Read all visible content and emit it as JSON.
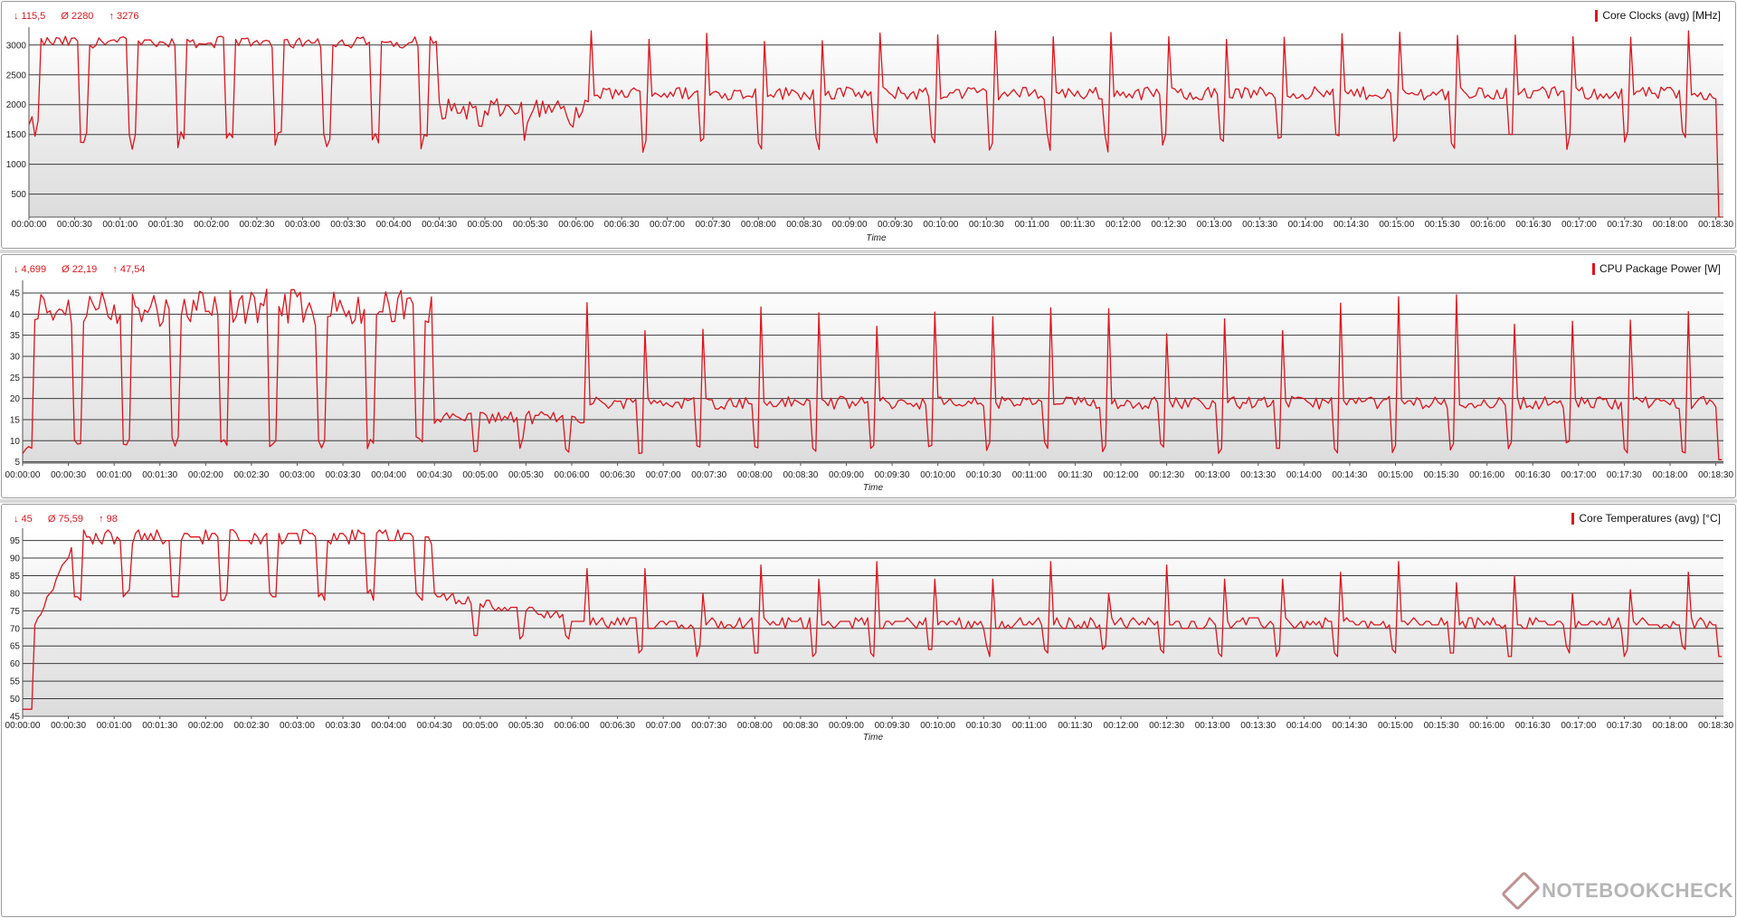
{
  "panels": [
    {
      "stats": {
        "min": "↓ 115,5",
        "avg": "Ø 2280",
        "max": "↑ 3276"
      },
      "legend": "Core Clocks (avg) [MHz]"
    },
    {
      "stats": {
        "min": "↓ 4,699",
        "avg": "Ø 22,19",
        "max": "↑ 47,54"
      },
      "legend": "CPU Package Power [W]"
    },
    {
      "stats": {
        "min": "↓ 45",
        "avg": "Ø 75,59",
        "max": "↑ 98"
      },
      "legend": "Core Temperatures (avg) [°C]"
    }
  ],
  "watermark": "NOTEBOOKCHECK",
  "colors": {
    "series": "#e0141c",
    "grid": "#3c3c3c",
    "bg_top": "#ffffff",
    "bg_bottom": "#dcdcdc"
  },
  "chart_data": [
    {
      "type": "line",
      "title": "",
      "xlabel": "Time",
      "ylabel": "",
      "xlim": [
        0,
        1115
      ],
      "ylim": [
        115.5,
        3300
      ],
      "yticks": [
        500,
        1000,
        1500,
        2000,
        2500,
        3000
      ],
      "xtick_labels": [
        "00:00:00",
        "00:00:30",
        "00:01:00",
        "00:01:30",
        "00:02:00",
        "00:02:30",
        "00:03:00",
        "00:03:30",
        "00:04:00",
        "00:04:30",
        "00:05:00",
        "00:05:30",
        "00:06:00",
        "00:06:30",
        "00:07:00",
        "00:07:30",
        "00:08:00",
        "00:08:30",
        "00:09:00",
        "00:09:30",
        "00:10:00",
        "00:10:30",
        "00:11:00",
        "00:11:30",
        "00:12:00",
        "00:12:30",
        "00:13:00",
        "00:13:30",
        "00:14:00",
        "00:14:30",
        "00:15:00",
        "00:15:30",
        "00:16:00",
        "00:16:30",
        "00:17:00",
        "00:17:30",
        "00:18:00",
        "00:18:30"
      ],
      "grid": true,
      "series": [
        {
          "name": "Core Clocks (avg) [MHz]",
          "values": []
        }
      ]
    },
    {
      "type": "line",
      "title": "",
      "xlabel": "Time",
      "ylabel": "",
      "xlim": [
        0,
        1115
      ],
      "ylim": [
        4.699,
        48
      ],
      "yticks": [
        5,
        10,
        15,
        20,
        25,
        30,
        35,
        40,
        45
      ],
      "xtick_labels": [
        "00:00:00",
        "00:00:30",
        "00:01:00",
        "00:01:30",
        "00:02:00",
        "00:02:30",
        "00:03:00",
        "00:03:30",
        "00:04:00",
        "00:04:30",
        "00:05:00",
        "00:05:30",
        "00:06:00",
        "00:06:30",
        "00:07:00",
        "00:07:30",
        "00:08:00",
        "00:08:30",
        "00:09:00",
        "00:09:30",
        "00:10:00",
        "00:10:30",
        "00:11:00",
        "00:11:30",
        "00:12:00",
        "00:12:30",
        "00:13:00",
        "00:13:30",
        "00:14:00",
        "00:14:30",
        "00:15:00",
        "00:15:30",
        "00:16:00",
        "00:16:30",
        "00:17:00",
        "00:17:30",
        "00:18:00",
        "00:18:30"
      ],
      "grid": true,
      "series": [
        {
          "name": "CPU Package Power [W]",
          "values": []
        }
      ]
    },
    {
      "type": "line",
      "title": "",
      "xlabel": "Time",
      "ylabel": "",
      "xlim": [
        0,
        1115
      ],
      "ylim": [
        45,
        98.5
      ],
      "yticks": [
        45,
        50,
        55,
        60,
        65,
        70,
        75,
        80,
        85,
        90,
        95
      ],
      "xtick_labels": [
        "00:00:00",
        "00:00:30",
        "00:01:00",
        "00:01:30",
        "00:02:00",
        "00:02:30",
        "00:03:00",
        "00:03:30",
        "00:04:00",
        "00:04:30",
        "00:05:00",
        "00:05:30",
        "00:06:00",
        "00:06:30",
        "00:07:00",
        "00:07:30",
        "00:08:00",
        "00:08:30",
        "00:09:00",
        "00:09:30",
        "00:10:00",
        "00:10:30",
        "00:11:00",
        "00:11:30",
        "00:12:00",
        "00:12:30",
        "00:13:00",
        "00:13:30",
        "00:14:00",
        "00:14:30",
        "00:15:00",
        "00:15:30",
        "00:16:00",
        "00:16:30",
        "00:17:00",
        "00:17:30",
        "00:18:00",
        "00:18:30"
      ],
      "grid": true,
      "series": [
        {
          "name": "Core Temperatures (avg) [°C]",
          "values": []
        }
      ]
    }
  ]
}
